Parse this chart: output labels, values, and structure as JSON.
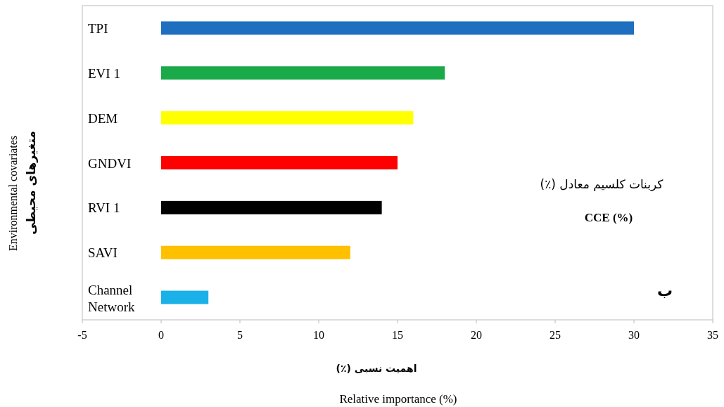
{
  "chart_data": {
    "type": "bar",
    "orientation": "horizontal",
    "title": "کربنات کلسیم معادل (٪)",
    "subtitle": "CCE (%)",
    "xlabel": "Relative importance (%)",
    "ylabel": "متغیرهای محیطی",
    "annotations": [
      "اهمیت نسبی (٪)",
      "Environmental covariates",
      "ب"
    ],
    "categories": [
      "TPI",
      "EVI 1",
      "DEM",
      "GNDVI",
      "RVI 1",
      "SAVI",
      "Channel Network"
    ],
    "values": [
      30,
      18,
      16,
      15,
      14,
      12,
      3
    ],
    "colors": [
      "#1f6fc0",
      "#1aaa4a",
      "#ffff00",
      "#ff0000",
      "#000000",
      "#ffc000",
      "#1ab0e8"
    ],
    "xlim": [
      -5,
      35
    ],
    "xticks": [
      -5,
      0,
      5,
      10,
      15,
      20,
      25,
      30,
      35
    ]
  }
}
